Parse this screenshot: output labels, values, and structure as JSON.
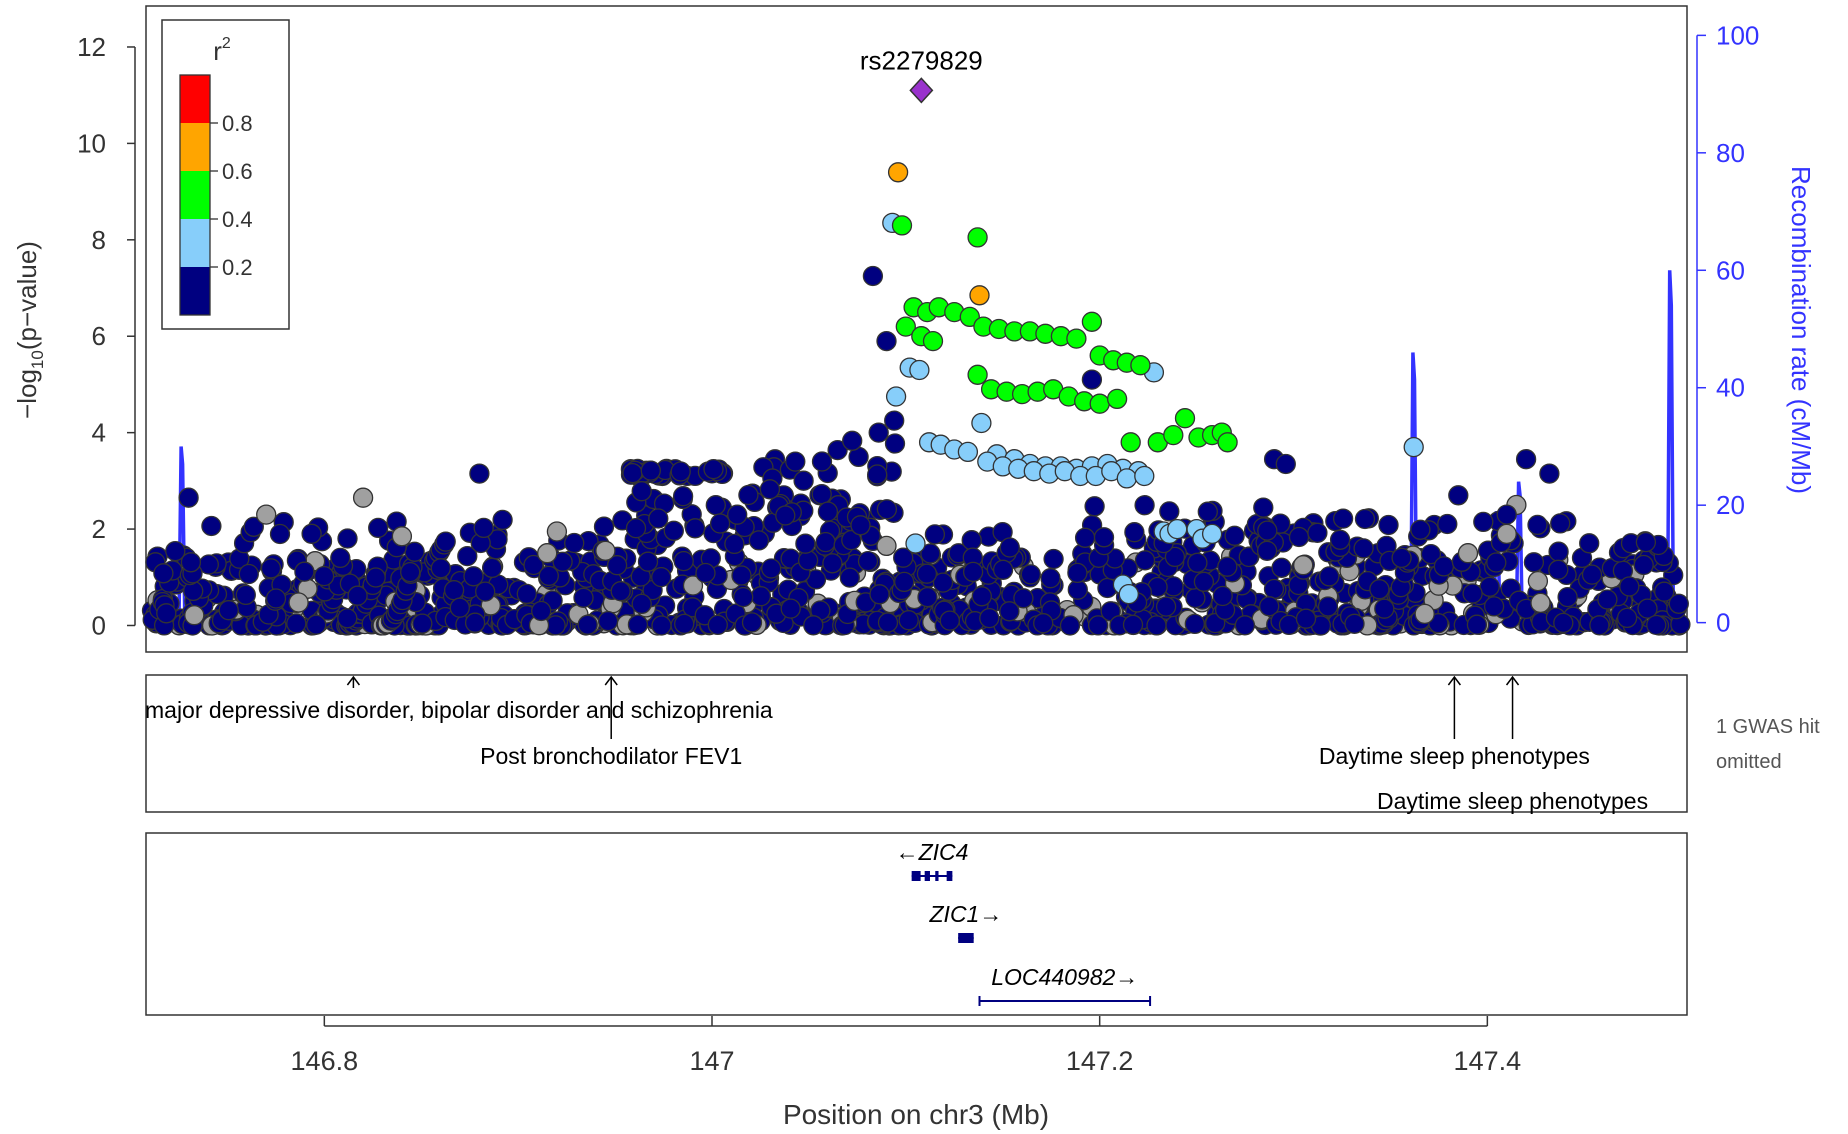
{
  "chart_data": {
    "type": "scatter",
    "subtype": "locuszoom",
    "xlabel": "Position on chr3 (Mb)",
    "x_ticks": [
      146.8,
      147,
      147.2,
      147.4
    ],
    "x_tick_labels": [
      "146.8",
      "147",
      "147.2",
      "147.4"
    ],
    "xlim": [
      146.708,
      147.503
    ],
    "ylabel_main": "−log",
    "ylabel_sub": "10",
    "ylabel_rest": "(p−value)",
    "ylim": [
      -0.55,
      12.85
    ],
    "y_ticks": [
      0,
      2,
      4,
      6,
      8,
      10,
      12
    ],
    "y2label": "Recombination rate (cM/Mb)",
    "y2lim": [
      -5,
      105
    ],
    "y2_ticks": [
      0,
      20,
      40,
      60,
      80,
      100
    ],
    "legend": {
      "title": "r",
      "title_sup": "2",
      "bins": [
        {
          "label": "0.8",
          "color": "#ff0000"
        },
        {
          "label": "0.6",
          "color": "#ffa500"
        },
        {
          "label": "0.4",
          "color": "#00ff00"
        },
        {
          "label": "0.2",
          "color": "#87cefa"
        },
        {
          "label": "",
          "color": "#000080"
        }
      ],
      "placement": "top-left"
    },
    "lead_snp": {
      "label": "rs2279829",
      "x": 147.108,
      "y": 11.1,
      "color": "#9932cc"
    },
    "colors": {
      "navy": "#000080",
      "lightblue": "#87cefa",
      "green": "#00ff00",
      "orange": "#ffa500",
      "gray": "#a0a0a0",
      "recomb": "#3333ff",
      "point_edge": "#333333"
    },
    "highlight_points": {
      "orange": [
        [
          147.096,
          9.4
        ],
        [
          147.138,
          6.85
        ]
      ],
      "green": [
        [
          147.098,
          8.3
        ],
        [
          147.137,
          8.05
        ],
        [
          147.1,
          6.2
        ],
        [
          147.104,
          6.6
        ],
        [
          147.111,
          6.5
        ],
        [
          147.117,
          6.6
        ],
        [
          147.125,
          6.5
        ],
        [
          147.133,
          6.4
        ],
        [
          147.14,
          6.2
        ],
        [
          147.148,
          6.15
        ],
        [
          147.156,
          6.1
        ],
        [
          147.164,
          6.1
        ],
        [
          147.172,
          6.05
        ],
        [
          147.18,
          6.0
        ],
        [
          147.188,
          5.95
        ],
        [
          147.196,
          6.3
        ],
        [
          147.2,
          5.6
        ],
        [
          147.207,
          5.5
        ],
        [
          147.214,
          5.45
        ],
        [
          147.221,
          5.4
        ],
        [
          147.137,
          5.2
        ],
        [
          147.144,
          4.9
        ],
        [
          147.152,
          4.85
        ],
        [
          147.16,
          4.8
        ],
        [
          147.168,
          4.85
        ],
        [
          147.176,
          4.9
        ],
        [
          147.184,
          4.75
        ],
        [
          147.192,
          4.65
        ],
        [
          147.2,
          4.6
        ],
        [
          147.209,
          4.7
        ],
        [
          147.216,
          3.8
        ],
        [
          147.23,
          3.8
        ],
        [
          147.238,
          3.95
        ],
        [
          147.244,
          4.3
        ],
        [
          147.251,
          3.9
        ],
        [
          147.258,
          3.95
        ],
        [
          147.263,
          4.0
        ],
        [
          147.266,
          3.8
        ],
        [
          147.108,
          6.0
        ],
        [
          147.114,
          5.9
        ]
      ],
      "lightblue": [
        [
          147.093,
          8.35
        ],
        [
          147.095,
          4.75
        ],
        [
          147.102,
          5.35
        ],
        [
          147.107,
          5.3
        ],
        [
          147.112,
          3.8
        ],
        [
          147.118,
          3.75
        ],
        [
          147.125,
          3.65
        ],
        [
          147.132,
          3.6
        ],
        [
          147.139,
          4.2
        ],
        [
          147.147,
          3.55
        ],
        [
          147.156,
          3.45
        ],
        [
          147.164,
          3.35
        ],
        [
          147.172,
          3.3
        ],
        [
          147.18,
          3.3
        ],
        [
          147.188,
          3.25
        ],
        [
          147.196,
          3.3
        ],
        [
          147.204,
          3.35
        ],
        [
          147.212,
          3.25
        ],
        [
          147.22,
          3.2
        ],
        [
          147.228,
          5.25
        ],
        [
          147.142,
          3.4
        ],
        [
          147.15,
          3.3
        ],
        [
          147.158,
          3.25
        ],
        [
          147.166,
          3.2
        ],
        [
          147.174,
          3.15
        ],
        [
          147.182,
          3.2
        ],
        [
          147.19,
          3.1
        ],
        [
          147.198,
          3.1
        ],
        [
          147.206,
          3.2
        ],
        [
          147.214,
          3.05
        ],
        [
          147.223,
          3.1
        ],
        [
          147.362,
          3.7
        ],
        [
          147.233,
          1.95
        ],
        [
          147.236,
          1.9
        ],
        [
          147.24,
          2.0
        ],
        [
          147.25,
          2.0
        ],
        [
          147.253,
          1.8
        ],
        [
          147.258,
          1.9
        ],
        [
          147.212,
          0.85
        ],
        [
          147.215,
          0.65
        ],
        [
          147.105,
          1.7
        ]
      ],
      "gray": [
        [
          146.77,
          2.3
        ],
        [
          146.82,
          2.65
        ],
        [
          146.92,
          1.95
        ],
        [
          146.915,
          1.5
        ],
        [
          146.945,
          1.55
        ],
        [
          147.09,
          1.65
        ],
        [
          147.415,
          2.5
        ],
        [
          147.41,
          1.9
        ],
        [
          147.305,
          1.25
        ],
        [
          147.39,
          1.5
        ],
        [
          146.84,
          1.85
        ]
      ],
      "navy": [
        [
          147.083,
          7.25
        ],
        [
          147.09,
          5.9
        ],
        [
          147.094,
          4.25
        ],
        [
          147.086,
          4.0
        ],
        [
          147.196,
          5.1
        ],
        [
          147.29,
          3.45
        ],
        [
          147.296,
          3.35
        ],
        [
          147.385,
          2.7
        ],
        [
          147.42,
          3.45
        ],
        [
          147.432,
          3.15
        ],
        [
          146.88,
          3.15
        ],
        [
          146.73,
          2.65
        ],
        [
          147.41,
          2.3
        ]
      ]
    },
    "gwas_track": {
      "hits": [
        {
          "x": 146.815,
          "label": "major depressive disorder, bipolar disorder and schizophrenia",
          "level": 0
        },
        {
          "x": 146.948,
          "label": "Post bronchodilator FEV1",
          "level": 1
        },
        {
          "x": 147.383,
          "label": "Daytime sleep phenotypes",
          "level": 1
        },
        {
          "x": 147.413,
          "label": "Daytime sleep phenotypes",
          "level": 2
        }
      ],
      "note_line1": "1 GWAS hit",
      "note_line2": "omitted"
    },
    "genes": [
      {
        "name": "ZIC4",
        "start": 147.103,
        "end": 147.124,
        "strand": "-",
        "row": 0
      },
      {
        "name": "ZIC1",
        "start": 147.127,
        "end": 147.135,
        "strand": "+",
        "row": 1
      },
      {
        "name": "LOC440982",
        "start": 147.138,
        "end": 147.226,
        "strand": "+",
        "row": 2
      }
    ],
    "recomb_spikes": [
      {
        "x": 146.7265,
        "y": 30
      },
      {
        "x": 147.362,
        "y": 46
      },
      {
        "x": 147.405,
        "y": 19
      },
      {
        "x": 147.4165,
        "y": 24
      },
      {
        "x": 147.4945,
        "y": 60
      }
    ]
  }
}
